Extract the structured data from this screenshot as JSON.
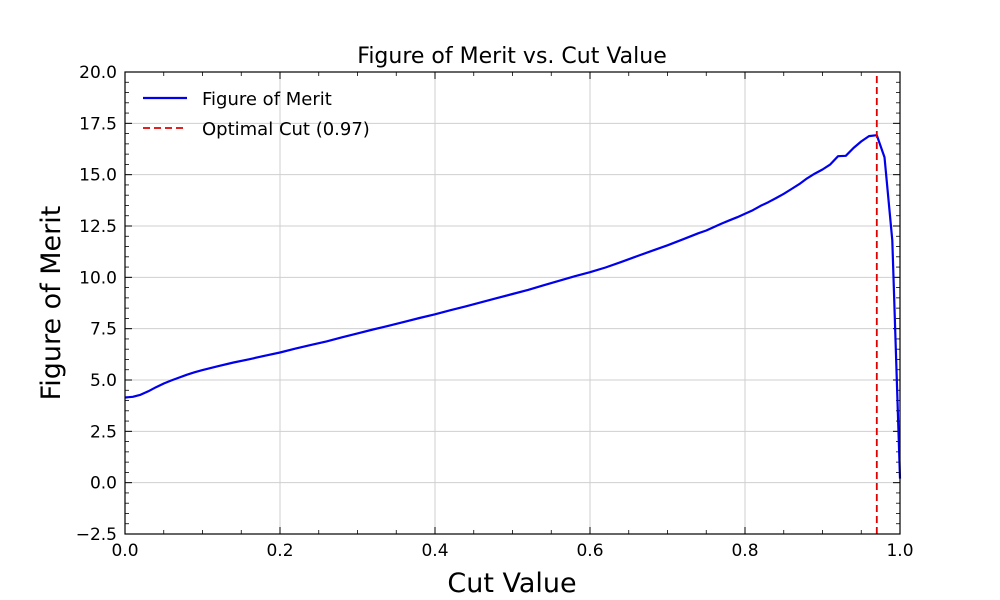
{
  "chart_data": {
    "type": "line",
    "title": "Figure of Merit vs. Cut Value",
    "xlabel": "Cut Value",
    "ylabel": "Figure of Merit",
    "xlim": [
      0.0,
      1.0
    ],
    "ylim": [
      -2.5,
      20.0
    ],
    "xticks": [
      "0.0",
      "0.2",
      "0.4",
      "0.6",
      "0.8",
      "1.0"
    ],
    "yticks": [
      "−2.5",
      "0.0",
      "2.5",
      "5.0",
      "7.5",
      "10.0",
      "12.5",
      "15.0",
      "17.5",
      "20.0"
    ],
    "grid": true,
    "legend_position": "top-left",
    "series": [
      {
        "name": "Figure of Merit",
        "color": "#0000ee",
        "style": "solid",
        "x": [
          0.0,
          0.01,
          0.02,
          0.03,
          0.04,
          0.05,
          0.06,
          0.07,
          0.08,
          0.09,
          0.1,
          0.12,
          0.14,
          0.16,
          0.18,
          0.2,
          0.22,
          0.24,
          0.26,
          0.28,
          0.3,
          0.32,
          0.34,
          0.36,
          0.38,
          0.4,
          0.42,
          0.44,
          0.46,
          0.48,
          0.5,
          0.52,
          0.54,
          0.56,
          0.58,
          0.6,
          0.62,
          0.64,
          0.66,
          0.68,
          0.7,
          0.72,
          0.74,
          0.75,
          0.76,
          0.77,
          0.78,
          0.79,
          0.8,
          0.81,
          0.82,
          0.83,
          0.84,
          0.85,
          0.86,
          0.87,
          0.88,
          0.89,
          0.9,
          0.91,
          0.92,
          0.93,
          0.94,
          0.95,
          0.96,
          0.97,
          0.98,
          0.99,
          1.0
        ],
        "y": [
          4.15,
          4.18,
          4.28,
          4.45,
          4.65,
          4.83,
          4.98,
          5.12,
          5.26,
          5.38,
          5.48,
          5.67,
          5.85,
          6.01,
          6.18,
          6.34,
          6.53,
          6.71,
          6.88,
          7.08,
          7.27,
          7.46,
          7.64,
          7.83,
          8.02,
          8.2,
          8.4,
          8.59,
          8.79,
          8.99,
          9.19,
          9.39,
          9.61,
          9.83,
          10.05,
          10.25,
          10.48,
          10.74,
          11.02,
          11.29,
          11.56,
          11.85,
          12.15,
          12.28,
          12.45,
          12.62,
          12.78,
          12.93,
          13.1,
          13.27,
          13.48,
          13.66,
          13.86,
          14.07,
          14.3,
          14.54,
          14.82,
          15.05,
          15.25,
          15.5,
          15.9,
          15.92,
          16.3,
          16.62,
          16.88,
          16.92,
          15.85,
          11.8,
          0.2
        ]
      },
      {
        "name": "Optimal Cut (0.97)",
        "color": "#e00000",
        "style": "dashed",
        "x": [
          0.97,
          0.97
        ],
        "y": [
          -2.5,
          20.0
        ]
      }
    ]
  }
}
